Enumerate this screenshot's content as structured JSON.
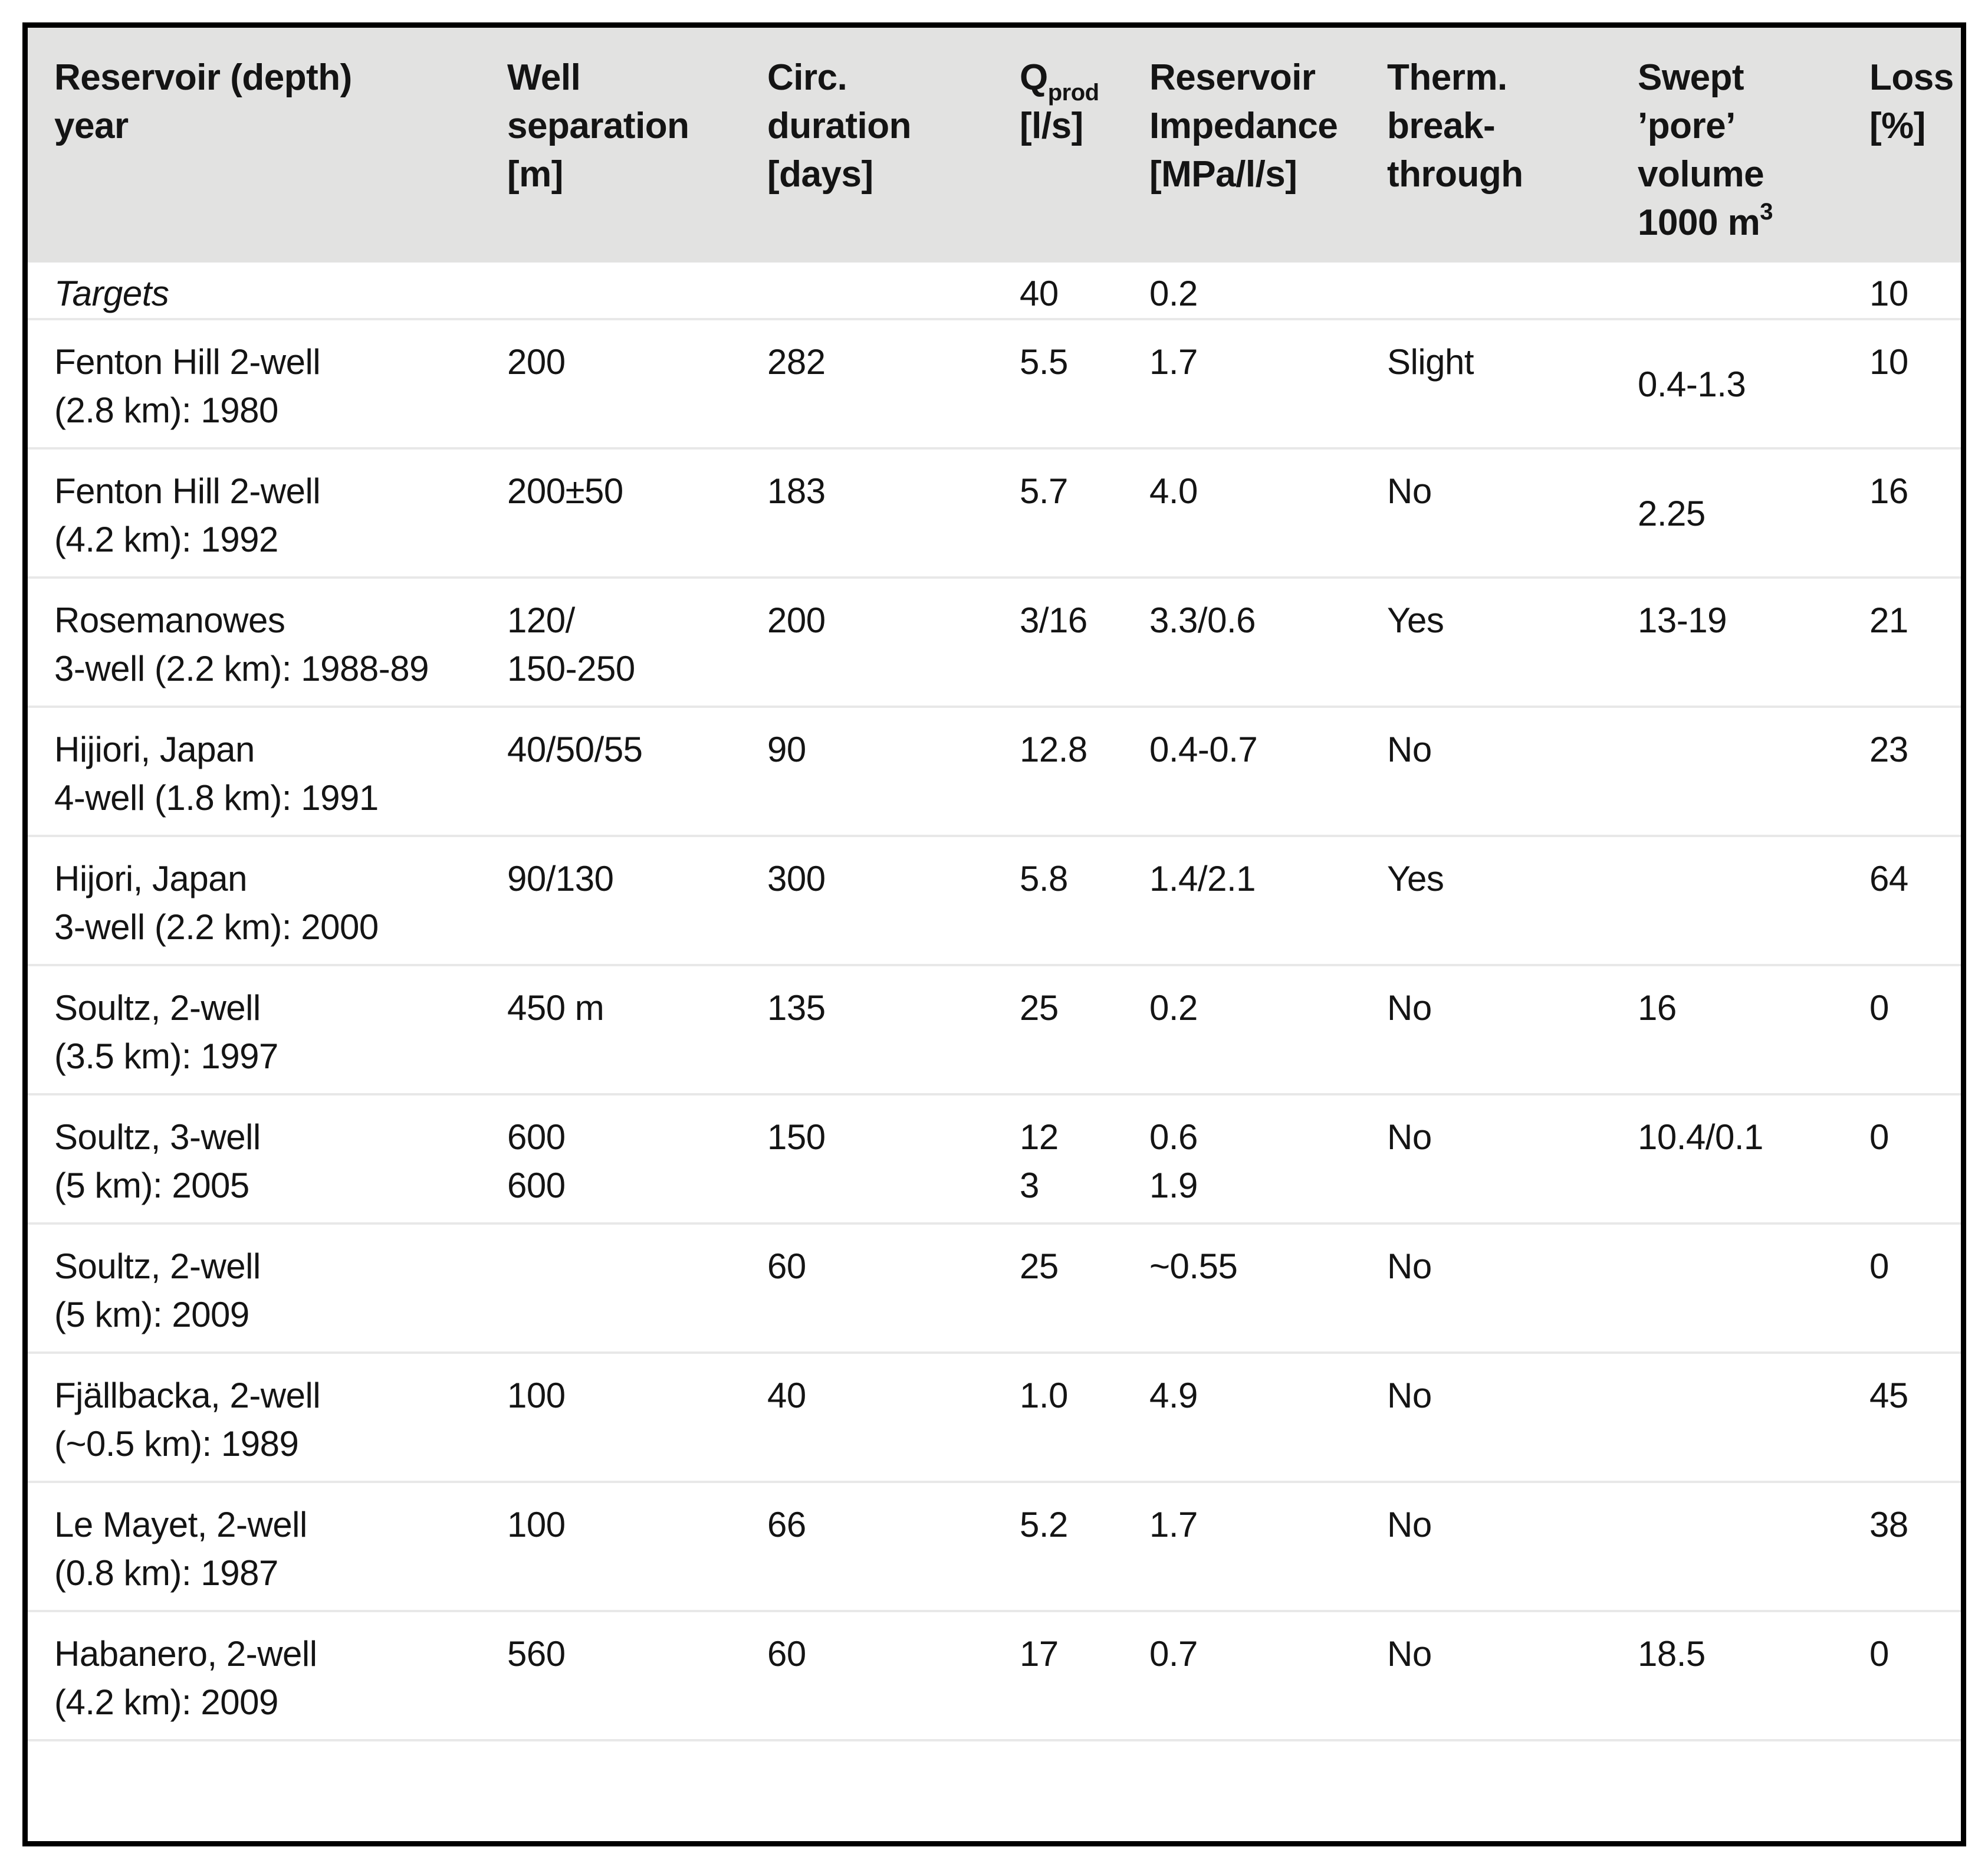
{
  "style": {
    "header_bg": "#e2e2e1",
    "border_color": "#000000",
    "separator_color": "#e8e8e8",
    "text_color": "#141414"
  },
  "table": {
    "header": {
      "reservoir": "Reservoir (depth)\nyear",
      "separation": "Well\nseparation\n[m]",
      "duration": "Circ.\nduration\n[days]",
      "q_main": "Q",
      "q_sub": "prod",
      "q_unit": "[l/s]",
      "impedance": "Reservoir\nImpedance\n[MPa/l/s]",
      "breakthrough": "Therm.\nbreak-\nthrough",
      "swept_lines": "Swept\n’pore’\nvolume",
      "swept_last_main": "1000 m",
      "swept_last_sup": "3",
      "loss": "Loss\n[%]"
    },
    "rows": [
      {
        "cells": [
          "Targets",
          "",
          "",
          "40",
          "0.2",
          "",
          "",
          "10"
        ],
        "targets": true
      },
      {
        "cells": [
          "Fenton Hill 2-well\n(2.8 km): 1980",
          "200",
          "282",
          "5.5",
          "1.7",
          "Slight",
          "0.4-1.3",
          "10"
        ],
        "swept_low": true
      },
      {
        "cells": [
          "Fenton Hill 2-well\n(4.2 km): 1992",
          "200±50",
          "183",
          "5.7",
          "4.0",
          "No",
          "2.25",
          "16"
        ],
        "swept_low": true
      },
      {
        "cells": [
          "Rosemanowes\n3-well (2.2 km): 1988-89",
          "120/\n150-250",
          "200",
          "3/16",
          "3.3/0.6",
          "Yes",
          "13-19",
          "21"
        ]
      },
      {
        "cells": [
          "Hijiori, Japan\n4-well (1.8 km): 1991",
          "40/50/55",
          "90",
          "12.8",
          "0.4-0.7",
          "No",
          "",
          "23"
        ]
      },
      {
        "cells": [
          "Hijori, Japan\n3-well (2.2 km): 2000",
          "90/130",
          "300",
          "5.8",
          "1.4/2.1",
          "Yes",
          "",
          "64"
        ]
      },
      {
        "cells": [
          "Soultz, 2-well\n(3.5 km): 1997",
          "450 m",
          "135",
          "25",
          "0.2",
          "No",
          "16",
          "0"
        ]
      },
      {
        "cells": [
          "Soultz, 3-well\n(5 km): 2005",
          "600\n600",
          "150",
          "12\n3",
          "0.6\n1.9",
          "No",
          "10.4/0.1",
          "0"
        ]
      },
      {
        "cells": [
          "Soultz, 2-well\n(5 km): 2009",
          "",
          "60",
          "25",
          "~0.55",
          "No",
          "",
          "0"
        ]
      },
      {
        "cells": [
          "Fjällbacka, 2-well\n(~0.5 km): 1989",
          "100",
          "40",
          "1.0",
          "4.9",
          "No",
          "",
          "45"
        ]
      },
      {
        "cells": [
          "Le Mayet, 2-well\n(0.8 km): 1987",
          "100",
          "66",
          "5.2",
          "1.7",
          "No",
          "",
          "38"
        ]
      },
      {
        "cells": [
          "Habanero, 2-well\n(4.2 km): 2009",
          "560",
          "60",
          "17",
          "0.7",
          "No",
          "18.5",
          "0"
        ]
      },
      {
        "cells": [
          "",
          "",
          "",
          "",
          "",
          "",
          "",
          ""
        ],
        "blank": true
      }
    ]
  }
}
